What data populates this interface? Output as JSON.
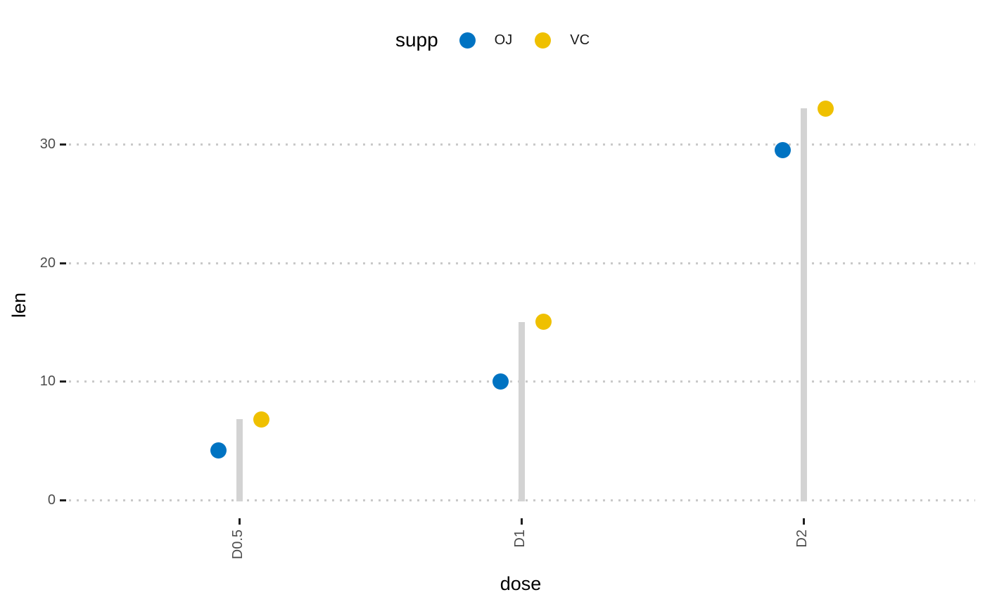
{
  "legend": {
    "title": "supp",
    "items": [
      {
        "label": "OJ",
        "color": "#0073C2"
      },
      {
        "label": "VC",
        "color": "#EFC000"
      }
    ],
    "position": "top"
  },
  "axes": {
    "x_title": "dose",
    "y_title": "len",
    "x_categories": [
      "D0.5",
      "D1",
      "D2"
    ],
    "y_ticks": [
      "0",
      "10",
      "20",
      "30"
    ]
  },
  "chart_data": {
    "type": "scatter",
    "subtype": "lollipop-dot-chart",
    "title": "",
    "categories": [
      "D0.5",
      "D1",
      "D2"
    ],
    "series": [
      {
        "name": "OJ",
        "color": "#0073C2",
        "values": [
          4.2,
          10,
          29.5
        ]
      },
      {
        "name": "VC",
        "color": "#EFC000",
        "values": [
          6.8,
          15,
          33
        ]
      }
    ],
    "segments": {
      "values": [
        6.8,
        15,
        33
      ],
      "color": "#D3D3D3",
      "note": "gray stick from 0 to max value of each dose group"
    },
    "xlabel": "dose",
    "ylabel": "len",
    "yticks": [
      0,
      10,
      20,
      30
    ],
    "ylim": [
      0,
      36
    ],
    "legend_title": "supp",
    "legend_position": "top",
    "grid": "dotted-horizontal-major-only",
    "x_tick_label_angle_deg": 90
  },
  "colors": {
    "oj": "#0073C2",
    "vc": "#EFC000",
    "segment": "#D3D3D3",
    "grid_dot": "#C9C9C9",
    "tick_label": "#4D4D4D",
    "tick_mark": "#1F1F1F",
    "text": "#000000",
    "background": "#FFFFFF"
  }
}
